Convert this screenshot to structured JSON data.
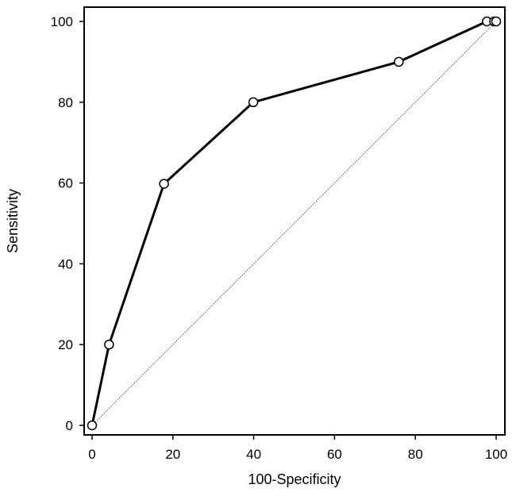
{
  "chart_data": {
    "type": "line",
    "title": "",
    "xlabel": "100-Specificity",
    "ylabel": "Sensitivity",
    "xlim": [
      0,
      100
    ],
    "ylim": [
      0,
      100
    ],
    "xticks": [
      0,
      20,
      40,
      60,
      80,
      100
    ],
    "yticks": [
      0,
      20,
      40,
      60,
      80,
      100
    ],
    "grid": false,
    "series": [
      {
        "x": [
          0,
          4.2,
          17.8,
          39.9,
          75.9,
          97.7,
          99.5,
          100
        ],
        "y": [
          0,
          20,
          59.8,
          80,
          90,
          100,
          100,
          100
        ],
        "color": "#000000",
        "marker": "open-circle"
      }
    ],
    "reference_line": {
      "x": [
        0,
        100
      ],
      "y": [
        0,
        100
      ],
      "style": "dotted",
      "color": "#555555"
    }
  }
}
